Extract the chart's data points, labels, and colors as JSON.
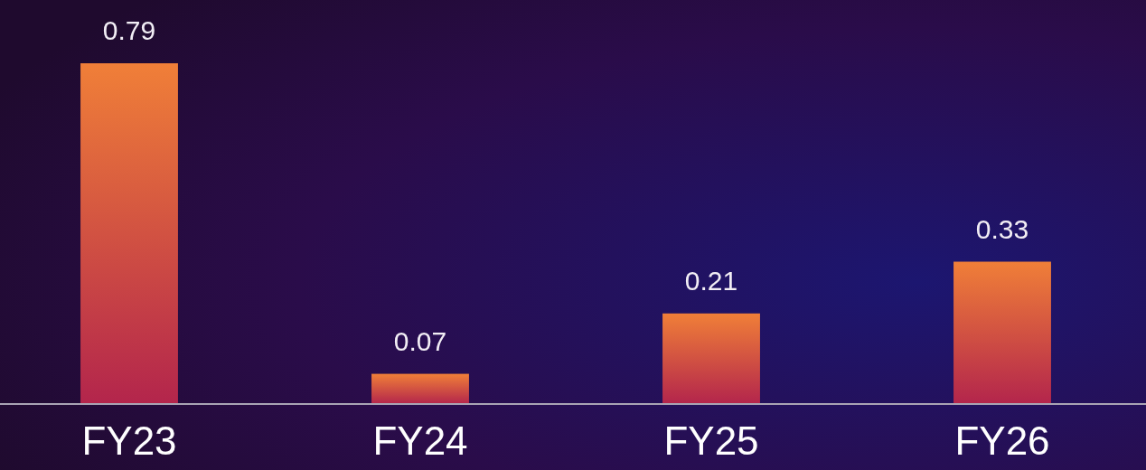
{
  "chart_data": {
    "type": "bar",
    "categories": [
      "FY23",
      "FY24",
      "FY25",
      "FY26"
    ],
    "values": [
      0.79,
      0.07,
      0.21,
      0.33
    ],
    "color": "#f07f38",
    "data_labels": true,
    "grid": false
  }
}
